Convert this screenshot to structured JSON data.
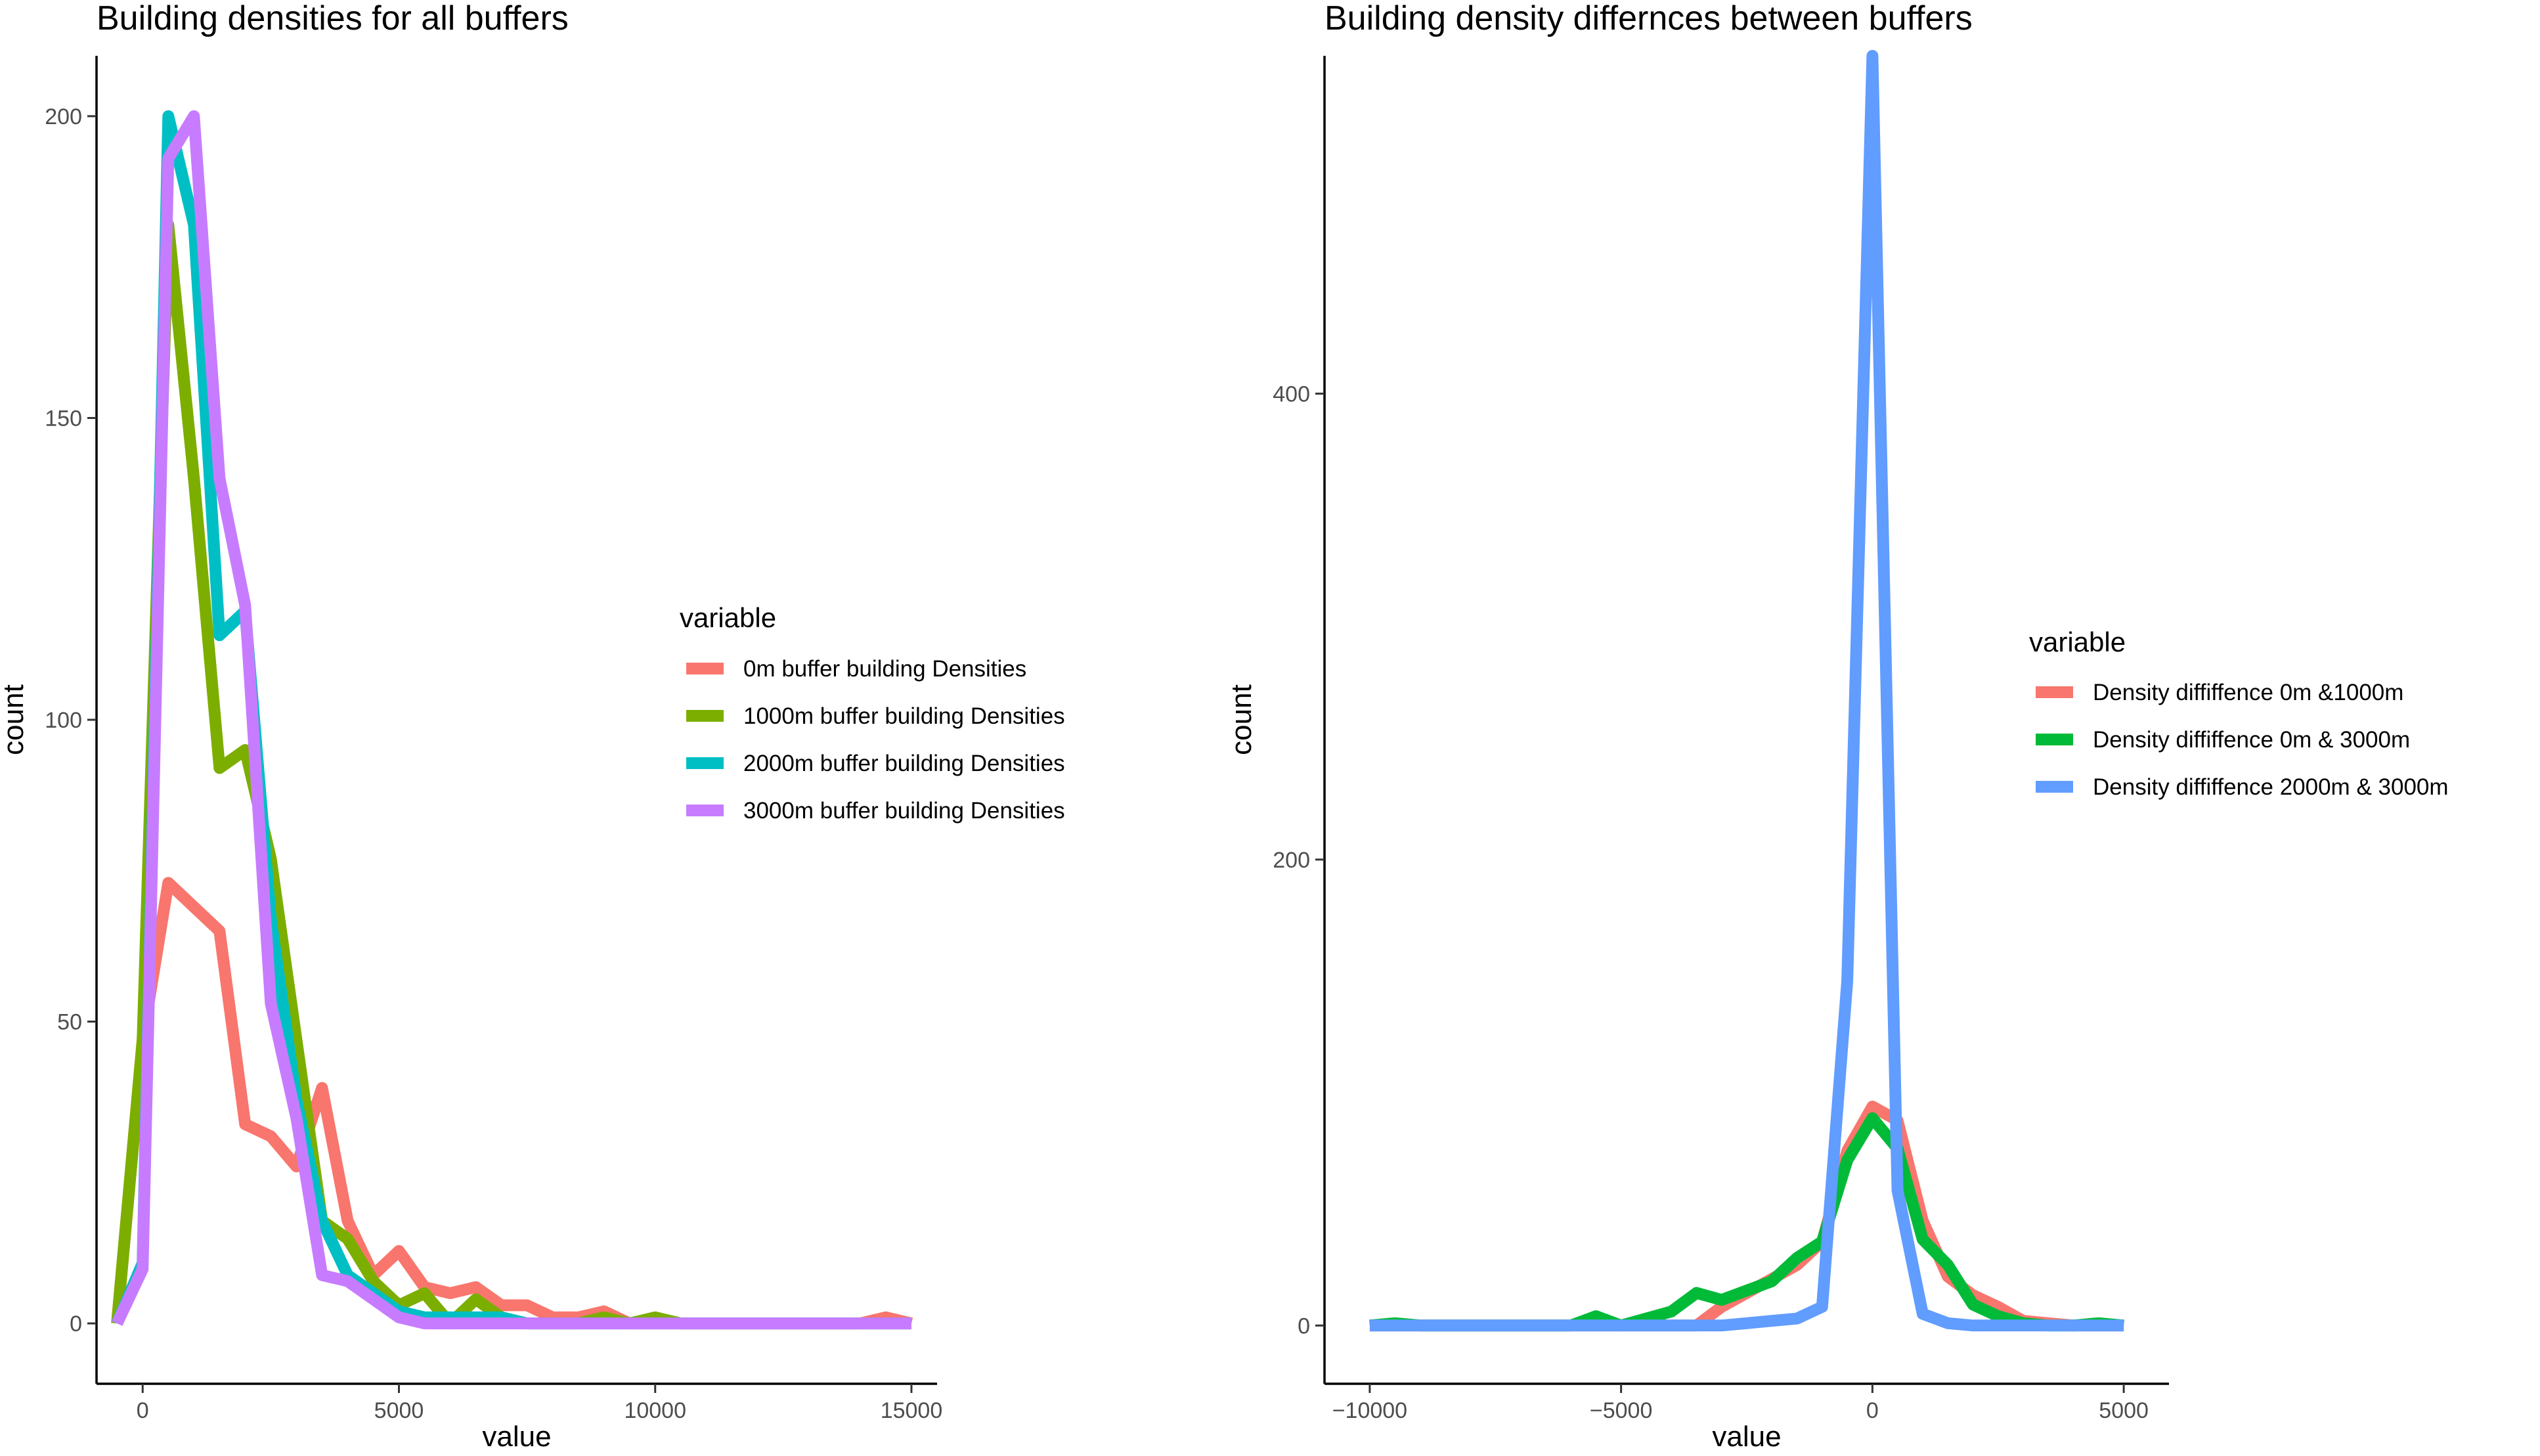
{
  "chart_data": [
    {
      "type": "line",
      "title": "Building densities for all buffers",
      "xlabel": "value",
      "ylabel": "count",
      "xlim": [
        -900,
        15500
      ],
      "ylim": [
        -10,
        210
      ],
      "xticks": [
        0,
        5000,
        10000,
        15000
      ],
      "yticks": [
        0,
        50,
        100,
        150,
        200
      ],
      "grid": false,
      "legend": {
        "title": "variable",
        "position": "right"
      },
      "series": [
        {
          "name": "0m buffer building Densities",
          "color": "#F8766D",
          "x": [
            -500,
            0,
            500,
            1000,
            1500,
            2000,
            2500,
            3000,
            3500,
            4000,
            4500,
            5000,
            5500,
            6000,
            6500,
            7000,
            7500,
            8000,
            8500,
            9000,
            9500,
            10000,
            10500,
            11000,
            11500,
            12000,
            12500,
            13000,
            13500,
            14000,
            14500,
            15000
          ],
          "y": [
            0,
            47,
            73,
            69,
            65,
            33,
            31,
            26,
            39,
            17,
            8,
            12,
            6,
            5,
            6,
            3,
            3,
            1,
            1,
            2,
            0,
            0,
            0,
            0,
            0,
            0,
            0,
            0,
            0,
            0,
            1,
            0
          ]
        },
        {
          "name": "1000m buffer building Densities",
          "color": "#7CAE00",
          "x": [
            -500,
            0,
            500,
            1000,
            1500,
            2000,
            2500,
            3000,
            3500,
            4000,
            4500,
            5000,
            5500,
            6000,
            6500,
            7000,
            7500,
            8000,
            8500,
            9000,
            9500,
            10000,
            10500,
            11000,
            11500,
            12000,
            12500,
            13000,
            13500,
            14000,
            14500,
            15000
          ],
          "y": [
            0,
            47,
            182,
            140,
            92,
            95,
            77,
            47,
            17,
            14,
            7,
            3,
            5,
            0,
            4,
            1,
            0,
            0,
            0,
            1,
            0,
            1,
            0,
            0,
            0,
            0,
            0,
            0,
            0,
            0,
            0,
            0
          ]
        },
        {
          "name": "2000m buffer building Densities",
          "color": "#00BFC4",
          "x": [
            -500,
            0,
            500,
            1000,
            1500,
            2000,
            2500,
            3000,
            3500,
            4000,
            4500,
            5000,
            5500,
            6000,
            6500,
            7000,
            7500,
            8000,
            8500,
            9000,
            9500,
            10000,
            10500,
            11000,
            11500,
            12000,
            12500,
            13000,
            13500,
            14000,
            14500,
            15000
          ],
          "y": [
            0,
            10,
            200,
            182,
            114,
            118,
            67,
            37,
            17,
            8,
            5,
            2,
            1,
            1,
            1,
            1,
            0,
            0,
            0,
            0,
            0,
            0,
            0,
            0,
            0,
            0,
            0,
            0,
            0,
            0,
            0,
            0
          ]
        },
        {
          "name": "3000m buffer building Densities",
          "color": "#C77CFF",
          "x": [
            -500,
            0,
            500,
            1000,
            1500,
            2000,
            2500,
            3000,
            3500,
            4000,
            4500,
            5000,
            5500,
            6000,
            6500,
            7000,
            7500,
            8000,
            8500,
            9000,
            9500,
            10000,
            10500,
            11000,
            11500,
            12000,
            12500,
            13000,
            13500,
            14000,
            14500,
            15000
          ],
          "y": [
            0,
            9,
            193,
            200,
            140,
            119,
            53,
            34,
            8,
            7,
            4,
            1,
            0,
            0,
            0,
            0,
            0,
            0,
            0,
            0,
            0,
            0,
            0,
            0,
            0,
            0,
            0,
            0,
            0,
            0,
            0,
            0
          ]
        }
      ]
    },
    {
      "type": "line",
      "title": "Building density differnces between buffers",
      "xlabel": "value",
      "ylabel": "count",
      "xlim": [
        -10900,
        5900
      ],
      "ylim": [
        -25,
        545
      ],
      "xticks": [
        -10000,
        -5000,
        0,
        5000
      ],
      "yticks": [
        0,
        200,
        400
      ],
      "grid": false,
      "legend": {
        "title": "variable",
        "position": "right"
      },
      "series": [
        {
          "name": "Density diffiffence 0m &1000m",
          "color": "#F8766D",
          "x": [
            -10000,
            -9500,
            -9000,
            -8500,
            -8000,
            -7500,
            -7000,
            -6500,
            -6000,
            -5500,
            -5000,
            -4500,
            -4000,
            -3500,
            -3000,
            -2500,
            -2000,
            -1500,
            -1000,
            -500,
            0,
            500,
            1000,
            1500,
            2000,
            2500,
            3000,
            3500,
            4000,
            4500,
            5000
          ],
          "y": [
            0,
            0,
            0,
            0,
            0,
            0,
            0,
            0,
            0,
            0,
            0,
            0,
            0,
            0,
            8,
            14,
            20,
            26,
            36,
            75,
            94,
            88,
            45,
            21,
            13,
            8,
            2,
            1,
            0,
            0,
            0
          ]
        },
        {
          "name": "Density diffiffence 0m & 3000m",
          "color": "#00BA38",
          "x": [
            -10000,
            -9500,
            -9000,
            -8500,
            -8000,
            -7500,
            -7000,
            -6500,
            -6000,
            -5500,
            -5000,
            -4500,
            -4000,
            -3500,
            -3000,
            -2500,
            -2000,
            -1500,
            -1000,
            -500,
            0,
            500,
            1000,
            1500,
            2000,
            2500,
            3000,
            3500,
            4000,
            4500,
            5000
          ],
          "y": [
            0,
            1,
            0,
            0,
            0,
            0,
            0,
            0,
            0,
            4,
            0,
            3,
            6,
            14,
            11,
            15,
            19,
            29,
            36,
            71,
            89,
            76,
            37,
            26,
            9,
            4,
            1,
            0,
            0,
            1,
            0
          ]
        },
        {
          "name": "Density diffiffence 2000m & 3000m",
          "color": "#619CFF",
          "x": [
            -10000,
            -9500,
            -9000,
            -8500,
            -8000,
            -7500,
            -7000,
            -6500,
            -6000,
            -5500,
            -5000,
            -4500,
            -4000,
            -3500,
            -3000,
            -2500,
            -2000,
            -1500,
            -1000,
            -500,
            0,
            500,
            1000,
            1500,
            2000,
            2500,
            3000,
            3500,
            4000,
            4500,
            5000
          ],
          "y": [
            0,
            0,
            0,
            0,
            0,
            0,
            0,
            0,
            0,
            0,
            0,
            0,
            0,
            0,
            0,
            1,
            2,
            3,
            8,
            148,
            545,
            58,
            5,
            1,
            0,
            0,
            0,
            0,
            0,
            0,
            0
          ]
        }
      ]
    }
  ]
}
